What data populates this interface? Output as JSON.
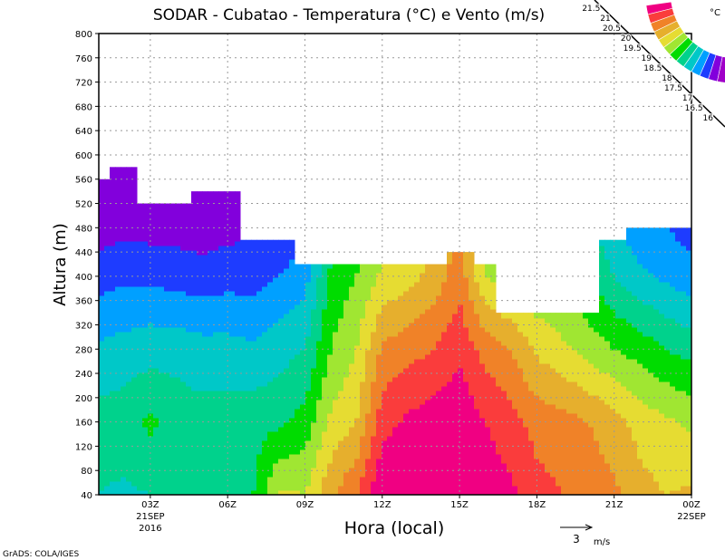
{
  "chart_data": {
    "type": "heatmap",
    "subtype": "filled-contour-with-wind-vectors",
    "title": "SODAR - Cubatao - Temperatura (°C) e Vento (m/s)",
    "xlabel": "Hora (local)",
    "ylabel": "Altura (m)",
    "xlim": [
      1,
      24
    ],
    "ylim": [
      40,
      800
    ],
    "y_ticks": [
      40,
      80,
      120,
      160,
      200,
      240,
      280,
      320,
      360,
      400,
      440,
      480,
      520,
      560,
      600,
      640,
      680,
      720,
      760,
      800
    ],
    "x_ticks": [
      {
        "hour": 3,
        "label": "03Z",
        "sub1": "21SEP",
        "sub2": "2016"
      },
      {
        "hour": 6,
        "label": "06Z"
      },
      {
        "hour": 9,
        "label": "09Z"
      },
      {
        "hour": 12,
        "label": "12Z"
      },
      {
        "hour": 15,
        "label": "15Z"
      },
      {
        "hour": 18,
        "label": "18Z"
      },
      {
        "hour": 21,
        "label": "21Z"
      },
      {
        "hour": 24,
        "label": "00Z",
        "sub1": "22SEP"
      }
    ],
    "grid": true,
    "profile_heights": [
      40,
      160,
      280,
      400,
      520
    ],
    "hours": [
      1,
      2,
      3,
      4,
      5,
      6,
      7,
      8,
      9,
      10,
      11,
      12,
      13,
      14,
      15,
      16,
      17,
      18,
      19,
      20,
      21,
      22,
      23,
      24
    ],
    "temperature": [
      [
        18.0,
        18.2,
        17.6,
        16.8,
        16.0
      ],
      [
        17.9,
        18.3,
        17.7,
        16.9,
        16.1
      ],
      [
        18.0,
        18.6,
        17.8,
        16.9,
        16.0
      ],
      [
        18.1,
        18.3,
        17.8,
        16.8,
        16.1
      ],
      [
        18.0,
        18.2,
        17.7,
        16.7,
        16.0
      ],
      [
        18.1,
        18.2,
        17.7,
        16.8,
        16.1
      ],
      [
        18.5,
        18.3,
        17.6,
        16.8,
        16.3
      ],
      [
        19.6,
        18.4,
        17.8,
        17.0,
        16.4
      ],
      [
        19.5,
        18.7,
        18.0,
        17.3,
        16.6
      ],
      [
        20.4,
        19.6,
        19.0,
        18.6,
        18.0
      ],
      [
        21.0,
        20.0,
        19.5,
        19.0,
        18.5
      ],
      [
        22.0,
        21.3,
        20.6,
        19.6,
        19.0
      ],
      [
        22.0,
        21.6,
        20.8,
        19.8,
        19.2
      ],
      [
        22.0,
        21.8,
        21.0,
        20.2,
        19.6
      ],
      [
        22.0,
        21.9,
        21.4,
        20.8,
        20.5
      ],
      [
        21.8,
        21.5,
        20.8,
        19.5,
        19.0
      ],
      [
        21.6,
        21.2,
        20.5,
        19.2,
        19.0
      ],
      [
        21.2,
        20.8,
        19.9,
        19.0,
        19.0
      ],
      [
        21.0,
        20.7,
        19.6,
        19.0,
        19.0
      ],
      [
        20.8,
        20.5,
        19.3,
        18.5,
        18.0
      ],
      [
        20.6,
        20.2,
        19.0,
        18.0,
        17.4
      ],
      [
        20.2,
        19.8,
        18.8,
        17.6,
        17.0
      ],
      [
        20.0,
        19.6,
        18.5,
        17.4,
        16.8
      ],
      [
        20.1,
        19.4,
        18.3,
        17.2,
        16.6
      ]
    ],
    "data_top_height": [
      560,
      580,
      520,
      520,
      540,
      540,
      460,
      460,
      420,
      420,
      420,
      420,
      420,
      420,
      440,
      420,
      340,
      340,
      340,
      340,
      460,
      480,
      480,
      480
    ],
    "legend": {
      "unit": "°C",
      "levels": [
        "16",
        "16.5",
        "17",
        "17.5",
        "18",
        "18.5",
        "19",
        "19.5",
        "20",
        "20.5",
        "21",
        "21.5"
      ],
      "colors": [
        "#a000c8",
        "#8200dc",
        "#1e3cff",
        "#00a0ff",
        "#00c8c8",
        "#00d28c",
        "#00dc00",
        "#a0e632",
        "#e6dc32",
        "#e6af2d",
        "#f08228",
        "#fa3c3c",
        "#f00082"
      ],
      "placement": "top-right"
    },
    "reference_vector": {
      "value": "3",
      "unit": "m/s"
    }
  },
  "footer": {
    "credit": "GrADS: COLA/IGES"
  }
}
